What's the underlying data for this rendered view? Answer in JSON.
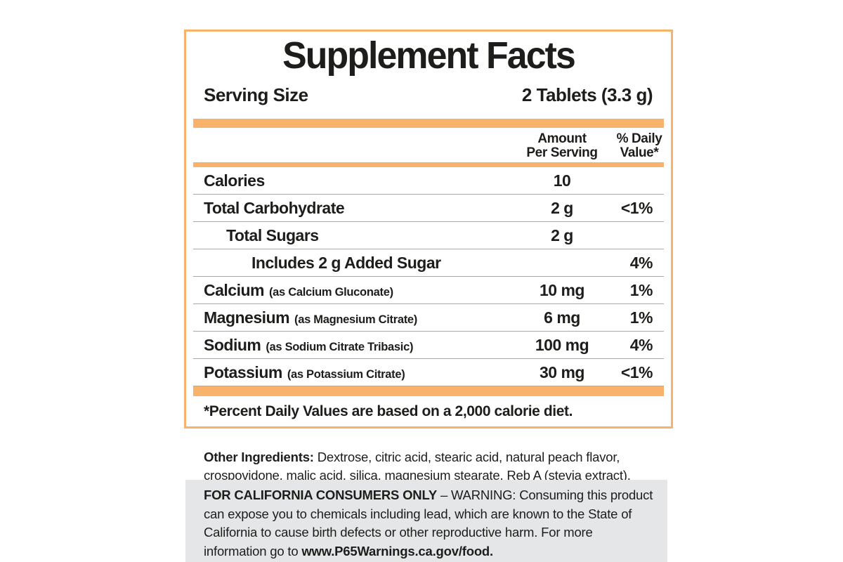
{
  "panel": {
    "title": "Supplement Facts",
    "serving_size_label": "Serving Size",
    "serving_size_value": "2 Tablets (3.3 g)",
    "columns": {
      "amount_line1": "Amount",
      "amount_line2": "Per Serving",
      "dv_line1": "% Daily",
      "dv_line2": "Value*"
    },
    "rows": [
      {
        "name": "Calories",
        "detail": "",
        "amount": "10",
        "dv": "",
        "indent": 0
      },
      {
        "name": "Total Carbohydrate",
        "detail": "",
        "amount": "2 g",
        "dv": "<1%",
        "indent": 0
      },
      {
        "name": "Total Sugars",
        "detail": "",
        "amount": "2 g",
        "dv": "",
        "indent": 1
      },
      {
        "name": "Includes 2 g Added Sugar",
        "detail": "",
        "amount": "",
        "dv": "4%",
        "indent": 2
      },
      {
        "name": "Calcium",
        "detail": "(as Calcium Gluconate)",
        "amount": "10 mg",
        "dv": "1%",
        "indent": 0
      },
      {
        "name": "Magnesium",
        "detail": "(as Magnesium Citrate)",
        "amount": "6 mg",
        "dv": "1%",
        "indent": 0
      },
      {
        "name": "Sodium",
        "detail": "(as Sodium Citrate Tribasic)",
        "amount": "100 mg",
        "dv": "4%",
        "indent": 0
      },
      {
        "name": "Potassium",
        "detail": "(as Potassium Citrate)",
        "amount": "30 mg",
        "dv": "<1%",
        "indent": 0
      }
    ],
    "footnote": "*Percent Daily Values are based on a 2,000 calorie diet."
  },
  "other_ingredients": {
    "label": "Other Ingredients:",
    "text": " Dextrose, citric acid, stearic acid, natural peach flavor, crospovidone, malic acid, silica, magnesium stearate, Reb A (stevia extract)."
  },
  "california_warning": {
    "bold_lead": "FOR CALIFORNIA CONSUMERS ONLY",
    "body": " – WARNING: Consuming this product can expose you to chemicals including lead, which are known to the State of California to cause birth defects or other reproductive harm. For more information go to ",
    "bold_url": "www.P65Warnings.ca.gov/food."
  },
  "colors": {
    "accent_orange": "#F7B26C",
    "separator_gray": "#A7A9AC",
    "warning_background": "#E5E6E7",
    "text_black": "#1D1D1B"
  }
}
